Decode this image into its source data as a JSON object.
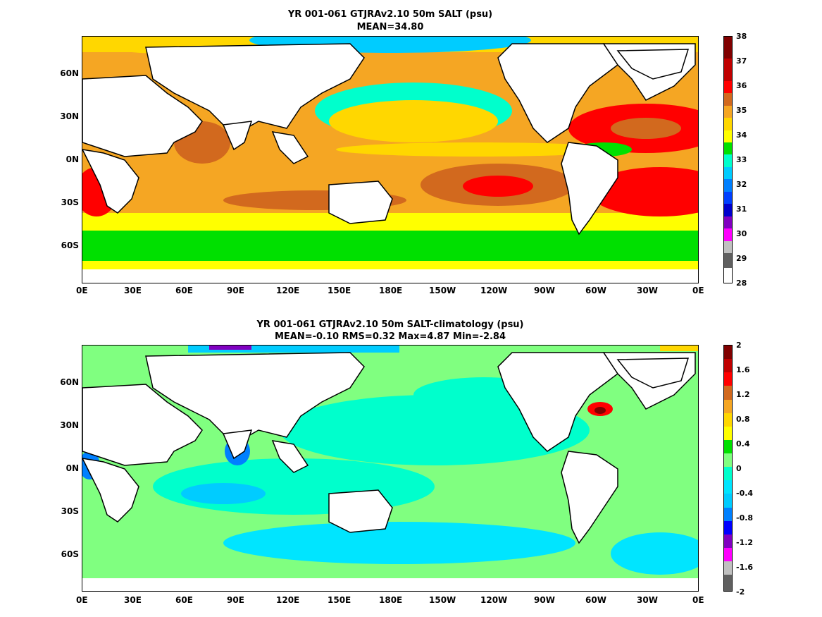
{
  "panels": [
    {
      "title_line1": "YR 001-061 GTJRAv2.10 50m SALT (psu)",
      "title_line2": "MEAN=34.80",
      "colorbar_labels": [
        "38",
        "37",
        "36",
        "35",
        "34",
        "33",
        "32",
        "31",
        "30",
        "29",
        "28"
      ],
      "colorbar_colors": [
        "#800000",
        "#c00000",
        "#ff0000",
        "#d2691e",
        "#f5a623",
        "#ffd700",
        "#ffff00",
        "#00e000",
        "#00ffcc",
        "#00ccff",
        "#0080ff",
        "#0040ff",
        "#0000cc",
        "#8000c0",
        "#ff00ff",
        "#c0c0c0",
        "#606060"
      ]
    },
    {
      "title_line1": "YR 001-061 GTJRAv2.10 50m SALT-climatology (psu)",
      "title_line2": "MEAN=-0.10   RMS=0.32   Max=4.87   Min=-2.84",
      "colorbar_labels": [
        "2",
        "1.6",
        "1.2",
        "0.8",
        "0.4",
        "0",
        "-0.4",
        "-0.8",
        "-1.2",
        "-1.6",
        "-2"
      ],
      "colorbar_colors": [
        "#800000",
        "#c00000",
        "#ff0000",
        "#d2691e",
        "#f5a623",
        "#ffd700",
        "#ffff00",
        "#00e000",
        "#80ff80",
        "#00ffcc",
        "#00e5ff",
        "#00ccff",
        "#0080ff",
        "#0000ff",
        "#8000c0",
        "#ff00ff",
        "#c0c0c0",
        "#606060"
      ]
    }
  ],
  "x_ticks": [
    "0E",
    "30E",
    "60E",
    "90E",
    "120E",
    "150E",
    "180E",
    "150W",
    "120W",
    "90W",
    "60W",
    "30W",
    "0E"
  ],
  "y_ticks": [
    "60N",
    "30N",
    "0N",
    "30S",
    "60S"
  ],
  "colors": {
    "land": "#ffffff",
    "coast": "#000000"
  }
}
